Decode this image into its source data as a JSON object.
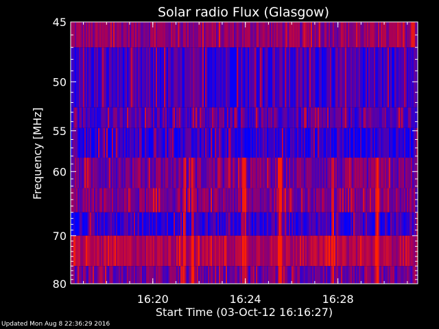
{
  "chart_data": {
    "type": "heatmap",
    "title": "Solar radio Flux (Glasgow)",
    "xlabel": "Start Time (03-Oct-12 16:16:27)",
    "ylabel": "Frequency [MHz]",
    "x_ticks": [
      "16:20",
      "16:24",
      "16:28"
    ],
    "x_tick_minutes_since_start": [
      3.55,
      7.55,
      11.55
    ],
    "y_ticks": [
      "45",
      "50",
      "55",
      "60",
      "70",
      "80"
    ],
    "y_tick_values": [
      45,
      50,
      55,
      60,
      70,
      80
    ],
    "ylim": [
      45,
      80
    ],
    "y_scale": "reciprocal",
    "x_range_minutes": [
      0,
      15
    ],
    "bands": [
      {
        "f_low": 45,
        "f_high": 47.0,
        "level": 0.42
      },
      {
        "f_low": 47.0,
        "f_high": 52.5,
        "level": 0.18
      },
      {
        "f_low": 52.5,
        "f_high": 54.7,
        "level": 0.23
      },
      {
        "f_low": 54.7,
        "f_high": 58.2,
        "level": 0.14
      },
      {
        "f_low": 58.2,
        "f_high": 62.3,
        "level": 0.33
      },
      {
        "f_low": 62.3,
        "f_high": 66.0,
        "level": 0.36
      },
      {
        "f_low": 66.0,
        "f_high": 70.0,
        "level": 0.16
      },
      {
        "f_low": 70.0,
        "f_high": 76.0,
        "level": 0.55
      },
      {
        "f_low": 76.0,
        "f_high": 80.0,
        "level": 0.32
      }
    ],
    "bursts_minutes": [
      4.9,
      5.3,
      11.3,
      7.5,
      9.0,
      9.1,
      13.2,
      13.3
    ],
    "colormap": {
      "low": "#0000ff",
      "mid": "#aa0055",
      "high": "#ff2200"
    },
    "grid": false
  },
  "footer": {
    "updated": "Updated Mon Aug  8 22:36:29 2016"
  }
}
